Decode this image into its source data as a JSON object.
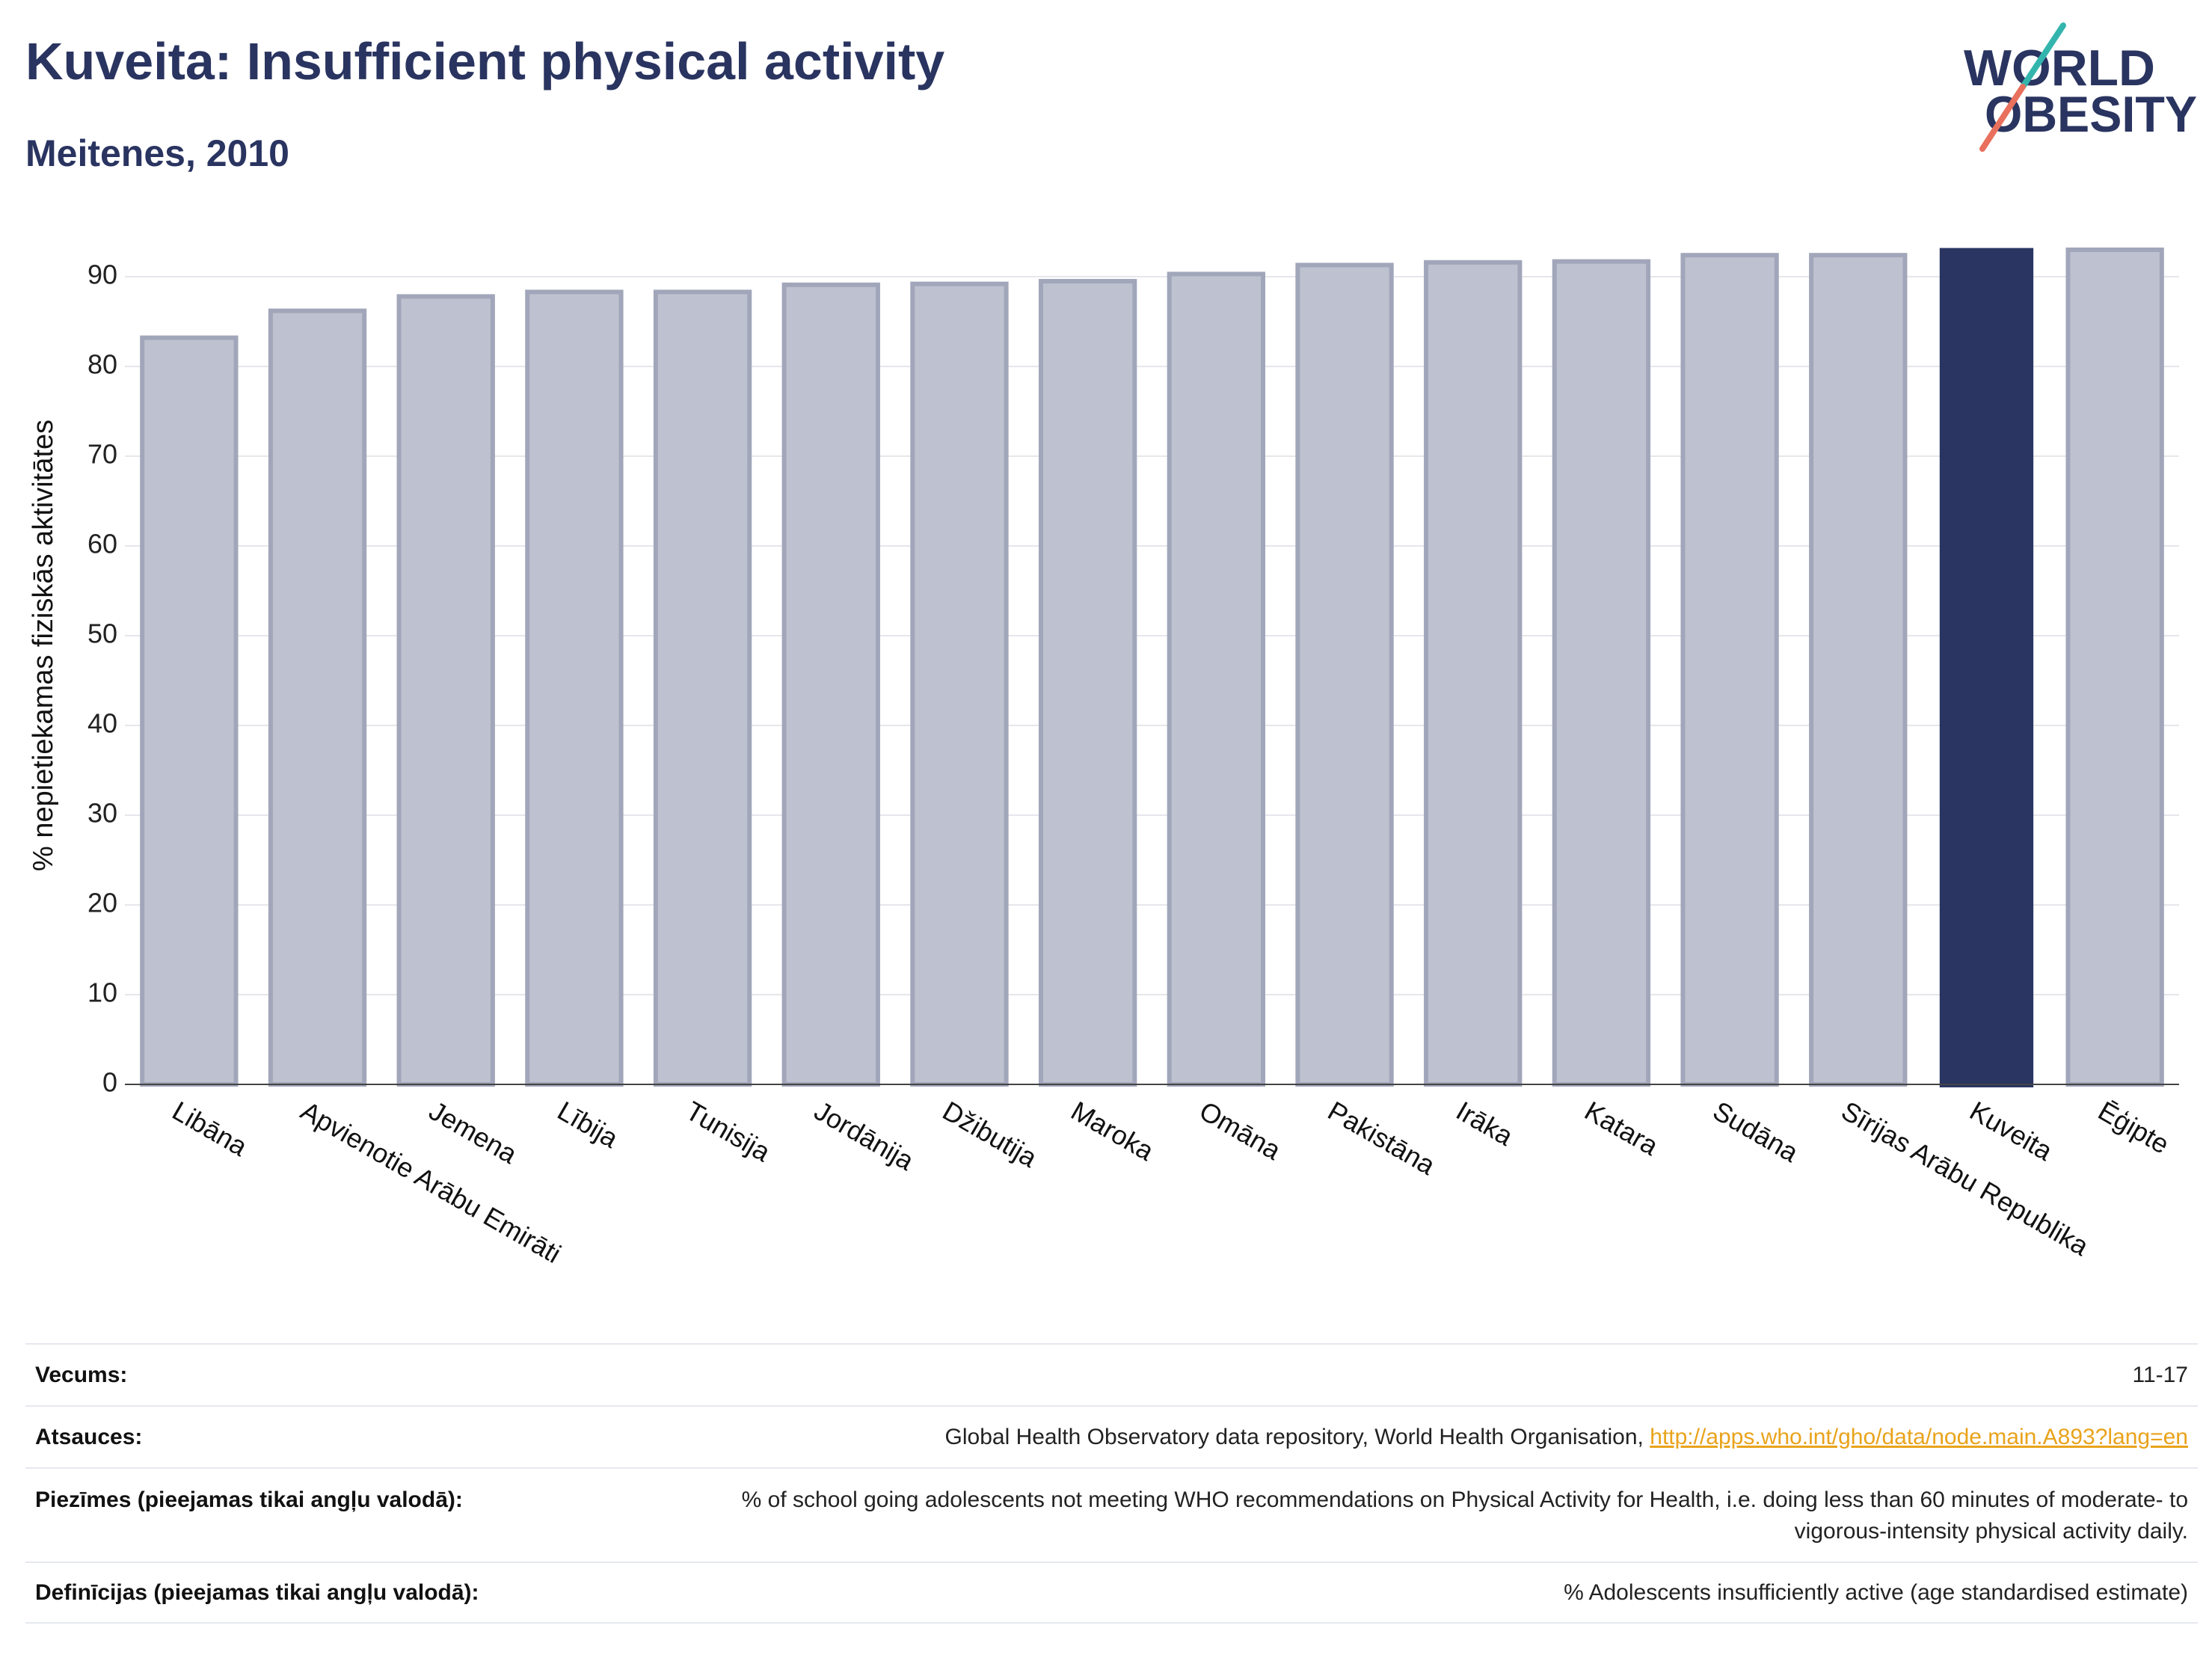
{
  "header": {
    "title": "Kuveita: Insufficient physical activity",
    "subtitle": "Meitenes, 2010"
  },
  "logo": {
    "line1": "WORLD",
    "line2": "OBESITY"
  },
  "colors": {
    "title": "#2a3460",
    "bar_default": "#bec1cf",
    "bar_outline": "#a2a6ba",
    "bar_highlight": "#2b3562",
    "gridline": "#e6e6ec",
    "axis": "#444444",
    "link": "#e9a31b",
    "logo_teal": "#33b5ad",
    "logo_salmon": "#e8705d"
  },
  "chart_data": {
    "type": "bar",
    "categories": [
      "Libāna",
      "Apvienotie Arābu Emirāti",
      "Jemena",
      "Lībija",
      "Tunisija",
      "Jordānija",
      "Džibutija",
      "Maroka",
      "Omāna",
      "Pakistāna",
      "Irāka",
      "Katara",
      "Sudāna",
      "Sīrijas Arābu Republika",
      "Kuveita",
      "Ēģipte"
    ],
    "values": [
      83.2,
      86.2,
      87.8,
      88.3,
      88.3,
      89.1,
      89.2,
      89.5,
      90.3,
      91.3,
      91.6,
      91.7,
      92.4,
      92.4,
      93.2,
      93.0
    ],
    "highlight": "Kuveita",
    "ylabel": "% nepietiekamas fiziskās aktivitātes",
    "yticks": [
      0,
      10,
      20,
      30,
      40,
      50,
      60,
      70,
      80,
      90
    ],
    "ylim": [
      0,
      95
    ],
    "grid": true
  },
  "table": {
    "age": {
      "label": "Vecums:",
      "value": "11-17"
    },
    "sources": {
      "label": "Atsauces:",
      "text": "Global Health Observatory data repository, World Health Organisation,",
      "link": "http://apps.who.int/gho/data/node.main.A893?lang=en"
    },
    "notes": {
      "label": "Piezīmes (pieejamas tikai angļu valodā):",
      "value": "% of school going adolescents not meeting WHO recommendations on Physical Activity for Health, i.e. doing less than 60 minutes of moderate- to vigorous-intensity physical activity daily."
    },
    "definitions": {
      "label": "Definīcijas (pieejamas tikai angļu valodā):",
      "value": "% Adolescents insufficiently active (age standardised estimate)"
    }
  }
}
